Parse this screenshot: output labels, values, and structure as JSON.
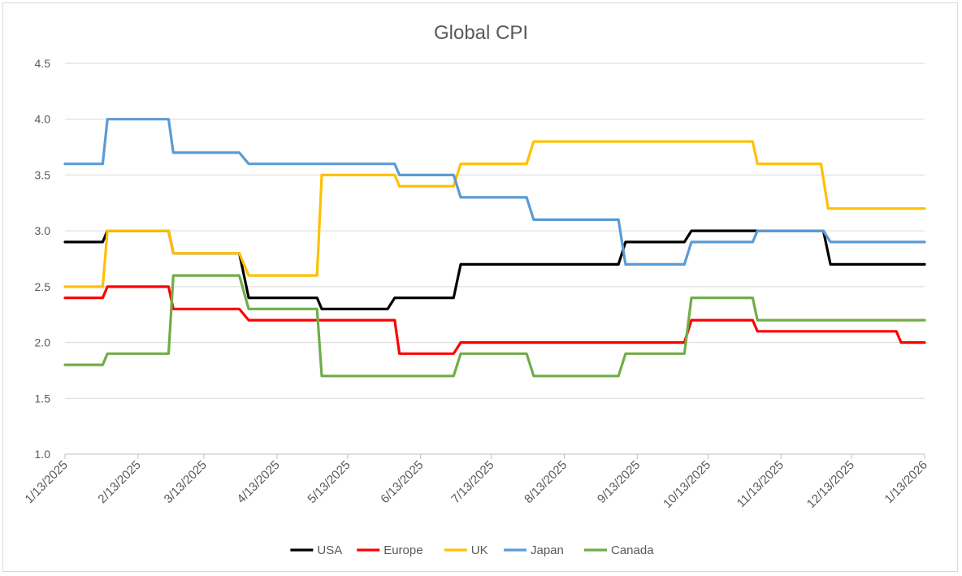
{
  "chart_data": {
    "type": "line",
    "title": "Global CPI",
    "xlabel": "",
    "ylabel": "",
    "ylim": [
      1.0,
      4.5
    ],
    "yticks": [
      "1.0",
      "1.5",
      "2.0",
      "2.5",
      "3.0",
      "3.5",
      "4.0",
      "4.5"
    ],
    "x_ticks": [
      "1/13/2025",
      "2/13/2025",
      "3/13/2025",
      "4/13/2025",
      "5/13/2025",
      "6/13/2025",
      "7/13/2025",
      "8/13/2025",
      "9/13/2025",
      "10/13/2025",
      "11/13/2025",
      "12/13/2025",
      "1/13/2026"
    ],
    "x_range": [
      "1/13/2025",
      "1/13/2026"
    ],
    "grid": "horizontal",
    "legend_position": "bottom",
    "series": [
      {
        "name": "USA",
        "color": "#000000",
        "points": [
          [
            "1/13/2025",
            2.9
          ],
          [
            "1/29/2025",
            2.9
          ],
          [
            "1/31/2025",
            3.0
          ],
          [
            "2/26/2025",
            3.0
          ],
          [
            "2/28/2025",
            2.8
          ],
          [
            "3/28/2025",
            2.8
          ],
          [
            "4/1/2025",
            2.4
          ],
          [
            "4/30/2025",
            2.4
          ],
          [
            "5/2/2025",
            2.3
          ],
          [
            "5/30/2025",
            2.3
          ],
          [
            "6/2/2025",
            2.4
          ],
          [
            "6/27/2025",
            2.4
          ],
          [
            "6/30/2025",
            2.7
          ],
          [
            "9/5/2025",
            2.7
          ],
          [
            "9/8/2025",
            2.9
          ],
          [
            "10/3/2025",
            2.9
          ],
          [
            "10/6/2025",
            3.0
          ],
          [
            "12/1/2025",
            3.0
          ],
          [
            "12/4/2025",
            2.7
          ],
          [
            "1/13/2026",
            2.7
          ]
        ]
      },
      {
        "name": "Europe",
        "color": "#ff0000",
        "points": [
          [
            "1/13/2025",
            2.4
          ],
          [
            "1/29/2025",
            2.4
          ],
          [
            "1/31/2025",
            2.5
          ],
          [
            "2/26/2025",
            2.5
          ],
          [
            "2/28/2025",
            2.3
          ],
          [
            "3/28/2025",
            2.3
          ],
          [
            "4/1/2025",
            2.2
          ],
          [
            "6/2/2025",
            2.2
          ],
          [
            "6/4/2025",
            1.9
          ],
          [
            "6/27/2025",
            1.9
          ],
          [
            "6/30/2025",
            2.0
          ],
          [
            "10/3/2025",
            2.0
          ],
          [
            "10/6/2025",
            2.2
          ],
          [
            "11/1/2025",
            2.2
          ],
          [
            "11/3/2025",
            2.1
          ],
          [
            "1/1/2026",
            2.1
          ],
          [
            "1/3/2026",
            2.0
          ],
          [
            "1/13/2026",
            2.0
          ]
        ]
      },
      {
        "name": "UK",
        "color": "#ffc000",
        "points": [
          [
            "1/13/2025",
            2.5
          ],
          [
            "1/29/2025",
            2.5
          ],
          [
            "1/31/2025",
            3.0
          ],
          [
            "2/26/2025",
            3.0
          ],
          [
            "2/28/2025",
            2.8
          ],
          [
            "3/28/2025",
            2.8
          ],
          [
            "4/1/2025",
            2.6
          ],
          [
            "4/30/2025",
            2.6
          ],
          [
            "5/2/2025",
            3.5
          ],
          [
            "6/2/2025",
            3.5
          ],
          [
            "6/4/2025",
            3.4
          ],
          [
            "6/27/2025",
            3.4
          ],
          [
            "6/30/2025",
            3.6
          ],
          [
            "7/28/2025",
            3.6
          ],
          [
            "7/31/2025",
            3.8
          ],
          [
            "11/1/2025",
            3.8
          ],
          [
            "11/3/2025",
            3.6
          ],
          [
            "11/30/2025",
            3.6
          ],
          [
            "12/3/2025",
            3.2
          ],
          [
            "1/13/2026",
            3.2
          ]
        ]
      },
      {
        "name": "Japan",
        "color": "#5b9bd5",
        "points": [
          [
            "1/13/2025",
            3.6
          ],
          [
            "1/29/2025",
            3.6
          ],
          [
            "1/31/2025",
            4.0
          ],
          [
            "2/26/2025",
            4.0
          ],
          [
            "2/28/2025",
            3.7
          ],
          [
            "3/28/2025",
            3.7
          ],
          [
            "4/1/2025",
            3.6
          ],
          [
            "6/2/2025",
            3.6
          ],
          [
            "6/4/2025",
            3.5
          ],
          [
            "6/27/2025",
            3.5
          ],
          [
            "6/30/2025",
            3.3
          ],
          [
            "7/28/2025",
            3.3
          ],
          [
            "7/31/2025",
            3.1
          ],
          [
            "9/5/2025",
            3.1
          ],
          [
            "9/8/2025",
            2.7
          ],
          [
            "10/3/2025",
            2.7
          ],
          [
            "10/6/2025",
            2.9
          ],
          [
            "11/1/2025",
            2.9
          ],
          [
            "11/3/2025",
            3.0
          ],
          [
            "12/1/2025",
            3.0
          ],
          [
            "12/4/2025",
            2.9
          ],
          [
            "1/13/2026",
            2.9
          ]
        ]
      },
      {
        "name": "Canada",
        "color": "#70ad47",
        "points": [
          [
            "1/13/2025",
            1.8
          ],
          [
            "1/29/2025",
            1.8
          ],
          [
            "1/31/2025",
            1.9
          ],
          [
            "2/26/2025",
            1.9
          ],
          [
            "2/28/2025",
            2.6
          ],
          [
            "3/28/2025",
            2.6
          ],
          [
            "4/1/2025",
            2.3
          ],
          [
            "4/30/2025",
            2.3
          ],
          [
            "5/2/2025",
            1.7
          ],
          [
            "6/27/2025",
            1.7
          ],
          [
            "6/30/2025",
            1.9
          ],
          [
            "7/28/2025",
            1.9
          ],
          [
            "7/31/2025",
            1.7
          ],
          [
            "9/5/2025",
            1.7
          ],
          [
            "9/8/2025",
            1.9
          ],
          [
            "10/3/2025",
            1.9
          ],
          [
            "10/6/2025",
            2.4
          ],
          [
            "11/1/2025",
            2.4
          ],
          [
            "11/3/2025",
            2.2
          ],
          [
            "1/13/2026",
            2.2
          ]
        ]
      }
    ]
  }
}
